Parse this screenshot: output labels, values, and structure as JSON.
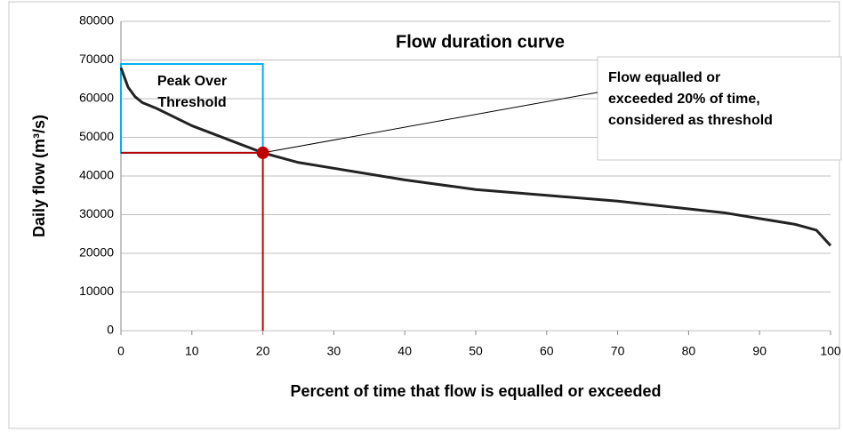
{
  "chart_data": {
    "type": "line",
    "title": "Flow duration curve",
    "x_label": "Percent of time that flow is equalled or exceeded",
    "y_label": "Daily flow (m³/s)",
    "x": [
      0,
      1,
      2,
      3,
      5,
      10,
      15,
      20,
      25,
      30,
      40,
      50,
      60,
      70,
      80,
      85,
      90,
      95,
      98,
      100
    ],
    "values": [
      68000,
      63000,
      60500,
      59000,
      57500,
      53000,
      49500,
      46000,
      43500,
      42000,
      39000,
      36500,
      35000,
      33500,
      31500,
      30500,
      29000,
      27500,
      26000,
      22000
    ],
    "color": "#222222",
    "xlim": [
      0,
      100
    ],
    "xticks": [
      0,
      10,
      20,
      30,
      40,
      50,
      60,
      70,
      80,
      90,
      100
    ],
    "ylim": [
      0,
      80000
    ],
    "yticks": [
      0,
      10000,
      20000,
      30000,
      40000,
      50000,
      60000,
      70000,
      80000
    ],
    "grid": true,
    "threshold": {
      "x": 20,
      "y": 46000,
      "color": "#c00000"
    },
    "box_label": [
      "Peak Over",
      "Threshold"
    ],
    "callout": [
      "Flow equalled or",
      "exceeded 20%  of time,",
      "considered as threshold"
    ]
  }
}
